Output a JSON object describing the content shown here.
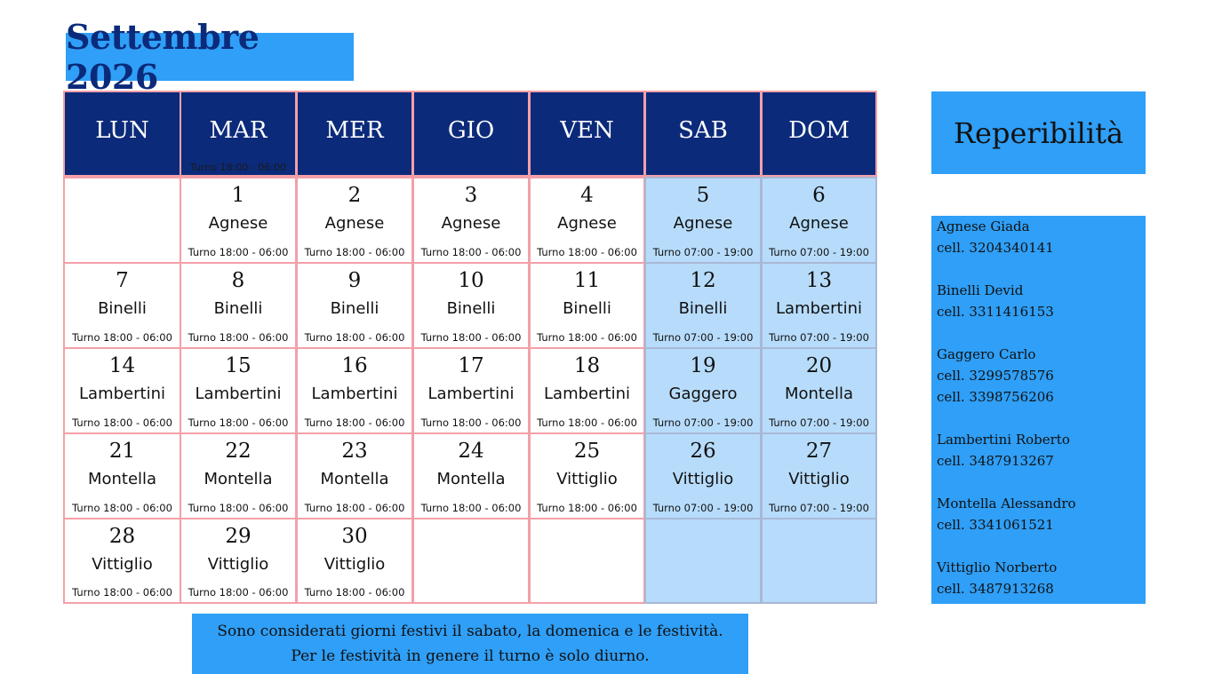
{
  "title": "Settembre 2026",
  "weekdays": [
    "LUN",
    "MAR",
    "MER",
    "GIO",
    "VEN",
    "SAB",
    "DOM"
  ],
  "header_note": "Turno 18:00 - 06:00",
  "weeks": [
    [
      null,
      {
        "day": "1",
        "name": "Agnese",
        "shift": "Turno 18:00 - 06:00"
      },
      {
        "day": "2",
        "name": "Agnese",
        "shift": "Turno 18:00 - 06:00"
      },
      {
        "day": "3",
        "name": "Agnese",
        "shift": "Turno 18:00 - 06:00"
      },
      {
        "day": "4",
        "name": "Agnese",
        "shift": "Turno 18:00 - 06:00"
      },
      {
        "day": "5",
        "name": "Agnese",
        "shift": "Turno 07:00 - 19:00"
      },
      {
        "day": "6",
        "name": "Agnese",
        "shift": "Turno 07:00 - 19:00"
      }
    ],
    [
      {
        "day": "7",
        "name": "Binelli",
        "shift": "Turno 18:00 - 06:00"
      },
      {
        "day": "8",
        "name": "Binelli",
        "shift": "Turno 18:00 - 06:00"
      },
      {
        "day": "9",
        "name": "Binelli",
        "shift": "Turno 18:00 - 06:00"
      },
      {
        "day": "10",
        "name": "Binelli",
        "shift": "Turno 18:00 - 06:00"
      },
      {
        "day": "11",
        "name": "Binelli",
        "shift": "Turno 18:00 - 06:00"
      },
      {
        "day": "12",
        "name": "Binelli",
        "shift": "Turno 07:00 - 19:00"
      },
      {
        "day": "13",
        "name": "Lambertini",
        "shift": "Turno 07:00 - 19:00"
      }
    ],
    [
      {
        "day": "14",
        "name": "Lambertini",
        "shift": "Turno 18:00 - 06:00"
      },
      {
        "day": "15",
        "name": "Lambertini",
        "shift": "Turno 18:00 - 06:00"
      },
      {
        "day": "16",
        "name": "Lambertini",
        "shift": "Turno 18:00 - 06:00"
      },
      {
        "day": "17",
        "name": "Lambertini",
        "shift": "Turno 18:00 - 06:00"
      },
      {
        "day": "18",
        "name": "Lambertini",
        "shift": "Turno 18:00 - 06:00"
      },
      {
        "day": "19",
        "name": "Gaggero",
        "shift": "Turno 07:00 - 19:00"
      },
      {
        "day": "20",
        "name": "Montella",
        "shift": "Turno 07:00 - 19:00"
      }
    ],
    [
      {
        "day": "21",
        "name": "Montella",
        "shift": "Turno 18:00 - 06:00"
      },
      {
        "day": "22",
        "name": "Montella",
        "shift": "Turno 18:00 - 06:00"
      },
      {
        "day": "23",
        "name": "Montella",
        "shift": "Turno 18:00 - 06:00"
      },
      {
        "day": "24",
        "name": "Montella",
        "shift": "Turno 18:00 - 06:00"
      },
      {
        "day": "25",
        "name": "Vittiglio",
        "shift": "Turno 18:00 - 06:00"
      },
      {
        "day": "26",
        "name": "Vittiglio",
        "shift": "Turno 07:00 - 19:00"
      },
      {
        "day": "27",
        "name": "Vittiglio",
        "shift": "Turno 07:00 - 19:00"
      }
    ],
    [
      {
        "day": "28",
        "name": "Vittiglio",
        "shift": "Turno 18:00 - 06:00"
      },
      {
        "day": "29",
        "name": "Vittiglio",
        "shift": "Turno 18:00 - 06:00"
      },
      {
        "day": "30",
        "name": "Vittiglio",
        "shift": "Turno 18:00 - 06:00"
      },
      null,
      null,
      null,
      null
    ]
  ],
  "reperibilita_title": "Reperibilità",
  "contacts": [
    {
      "name": "Agnese Giada",
      "phones": [
        "cell. 3204340141"
      ]
    },
    {
      "name": "Binelli Devid",
      "phones": [
        "cell. 3311416153"
      ]
    },
    {
      "name": "Gaggero Carlo",
      "phones": [
        "cell. 3299578576",
        "cell. 3398756206"
      ]
    },
    {
      "name": "Lambertini Roberto",
      "phones": [
        "cell. 3487913267"
      ]
    },
    {
      "name": "Montella Alessandro",
      "phones": [
        "cell. 3341061521"
      ]
    },
    {
      "name": "Vittiglio Norberto",
      "phones": [
        "cell. 3487913268"
      ]
    }
  ],
  "note_lines": [
    "Sono considerati giorni festivi il sabato, la domenica e le festività.",
    "Per le festività in genere il turno è solo diurno."
  ],
  "colors": {
    "header_bg": "#0b2a7a",
    "accent_blue": "#2f9ff7",
    "weekend_bg": "#b7dcfb",
    "grid_border": "#f4a0a8"
  }
}
